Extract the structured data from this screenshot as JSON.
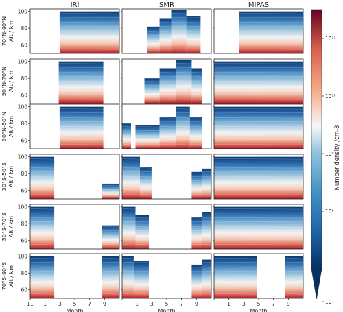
{
  "chart_data": {
    "type": "heatmap",
    "columns": [
      "IRI",
      "SMR",
      "MIPAS"
    ],
    "rows": [
      "70°N-90°N",
      "50°N-70°N",
      "30°N-50°N",
      "30°S-50°S",
      "50°S-70°S",
      "70°S-90°S"
    ],
    "ylabel": "Alt / km",
    "xlabel": "Month",
    "x_ticks": [
      "11",
      "1",
      "3",
      "5",
      "7",
      "9"
    ],
    "y_ticks": [
      "60",
      "80",
      "100"
    ],
    "ylim": [
      50,
      103
    ],
    "colorbar": {
      "label": "Number density /cm-3",
      "ticks": [
        "10⁷",
        "10⁸",
        "10⁹",
        "10¹⁰",
        "10¹¹"
      ],
      "range_log10": [
        7,
        11.5
      ]
    },
    "colors": {
      "high": "#67001f",
      "mid": "#f7f7f7",
      "low": "#053061"
    }
  }
}
